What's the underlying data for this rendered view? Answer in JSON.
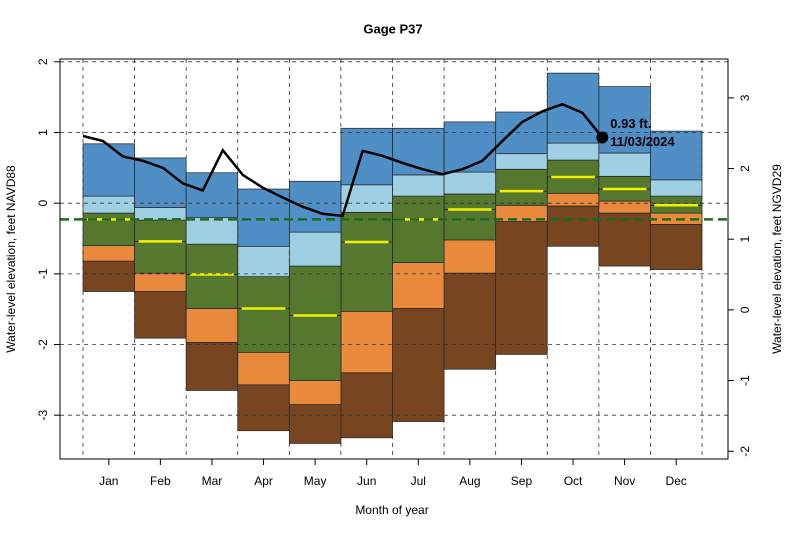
{
  "chart_data": {
    "type": "band",
    "title": "Gage P37",
    "x_label": "Month of year",
    "y_label": "Water-level elevation, feet NAVD88",
    "y2_label": "Water-level elevation, feet NGVD29",
    "categories": [
      "Jan",
      "Feb",
      "Mar",
      "Apr",
      "May",
      "Jun",
      "Jul",
      "Aug",
      "Sep",
      "Oct",
      "Nov",
      "Dec"
    ],
    "ylim": [
      -3.62,
      2.04
    ],
    "yticks": [
      -3,
      -2,
      -1,
      0,
      1,
      2
    ],
    "y2lim": [
      -2.11,
      3.55
    ],
    "y2ticks": [
      -2,
      -1,
      0,
      1,
      2,
      3
    ],
    "grid": true,
    "series": [
      {
        "color": "#774621",
        "values": [
          -1.25,
          -1.91,
          -2.65,
          -3.22,
          -3.4,
          -3.32,
          -3.09,
          -2.35,
          -2.14,
          -0.61,
          -0.89,
          -0.94
        ]
      },
      {
        "color": "#e8893c",
        "values": [
          -0.82,
          -1.25,
          -1.97,
          -2.57,
          -2.85,
          -2.4,
          -1.49,
          -0.99,
          -0.26,
          -0.04,
          -0.14,
          -0.3
        ]
      },
      {
        "color": "#56772e",
        "values": [
          -0.6,
          -0.99,
          -1.49,
          -2.11,
          -2.51,
          -1.53,
          -0.84,
          -0.52,
          -0.03,
          0.14,
          0.03,
          -0.14
        ]
      },
      {
        "color": "#56772e",
        "line_color": "#f2f200",
        "values": [
          -0.23,
          -0.54,
          -1.01,
          -1.49,
          -1.59,
          -0.55,
          -0.23,
          -0.09,
          0.17,
          0.37,
          0.2,
          -0.03
        ]
      },
      {
        "color": "#9ecfe2",
        "values": [
          -0.14,
          -0.24,
          -0.58,
          -1.04,
          -0.89,
          -0.13,
          0.1,
          0.13,
          0.48,
          0.61,
          0.38,
          0.1
        ]
      },
      {
        "color": "#4f8fc6",
        "values": [
          0.1,
          -0.06,
          -0.2,
          -0.61,
          -0.41,
          0.26,
          0.4,
          0.44,
          0.7,
          0.85,
          0.71,
          0.33
        ]
      },
      {
        "values": [
          0.84,
          0.64,
          0.43,
          0.2,
          0.31,
          1.06,
          1.06,
          1.15,
          1.29,
          1.84,
          1.65,
          1.02
        ]
      }
    ],
    "line": {
      "color": "#000000",
      "values": [
        0.95,
        0.88,
        0.66,
        0.6,
        0.5,
        0.28,
        0.18,
        0.75,
        0.4,
        0.22,
        0.08,
        -0.05,
        -0.15,
        -0.18,
        0.74,
        0.67,
        0.57,
        0.48,
        0.41,
        0.48,
        0.6,
        0.88,
        1.15,
        1.3,
        1.4,
        1.28,
        0.93
      ]
    },
    "reference_line": {
      "value": -0.23,
      "color": "#1d6a1d"
    },
    "annotation": {
      "value": 0.93,
      "label": "0.93 ft.",
      "date": "11/03/2024"
    }
  }
}
